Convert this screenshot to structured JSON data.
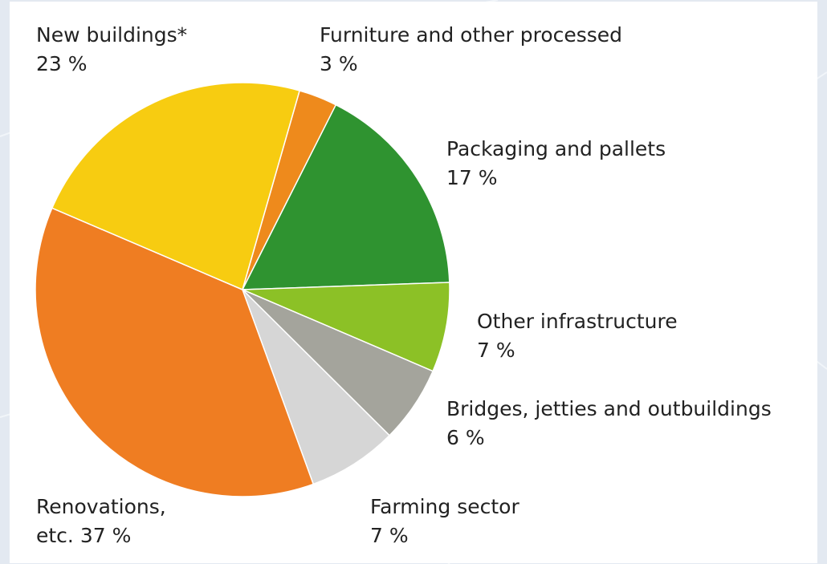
{
  "chart_data": {
    "type": "pie",
    "colors": {
      "background": "#e3e9f1",
      "panel": "#ffffff",
      "slice_edge": "#ffffff"
    },
    "slices": [
      {
        "label": "Furniture and other processed",
        "value_text": "3 %",
        "value": 3,
        "color": "#ee8a1c"
      },
      {
        "label": "Packaging and pallets",
        "value_text": "17 %",
        "value": 17,
        "color": "#2f9330"
      },
      {
        "label": "Other infrastructure",
        "value_text": "7 %",
        "value": 7,
        "color": "#8cc126"
      },
      {
        "label": "Bridges, jetties and outbuildings",
        "value_text": "6 %",
        "value": 6,
        "color": "#a4a49c"
      },
      {
        "label": "Farming sector",
        "value_text": "7 %",
        "value": 7,
        "color": "#d6d6d6"
      },
      {
        "label": "Renovations,",
        "label_line2": "etc. 37 %",
        "value": 37,
        "color": "#ef7d22"
      },
      {
        "label": "New buildings*",
        "value_text": "23 %",
        "value": 23,
        "color": "#f7cc11"
      }
    ]
  }
}
